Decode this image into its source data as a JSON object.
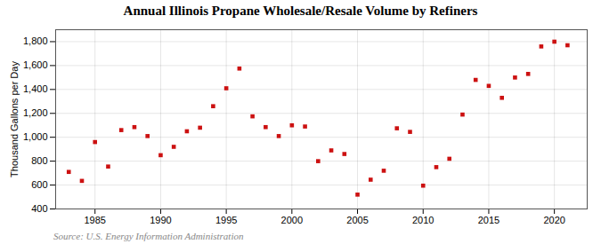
{
  "chart_data": {
    "type": "scatter",
    "title": "Annual Illinois Propane Wholesale/Resale Volume by Refiners",
    "ylabel": "Thousand Gallons per Day",
    "source": "Source: U.S. Energy Information Administration",
    "x": [
      1983,
      1984,
      1985,
      1986,
      1987,
      1988,
      1989,
      1990,
      1991,
      1992,
      1993,
      1994,
      1995,
      1996,
      1997,
      1998,
      1999,
      2000,
      2001,
      2002,
      2003,
      2004,
      2005,
      2006,
      2007,
      2008,
      2009,
      2010,
      2011,
      2012,
      2013,
      2014,
      2015,
      2016,
      2017,
      2018,
      2019,
      2020,
      2021
    ],
    "values": [
      710,
      635,
      960,
      755,
      1060,
      1085,
      1010,
      850,
      920,
      1050,
      1080,
      1260,
      1410,
      1575,
      1175,
      1085,
      1010,
      1100,
      1090,
      800,
      890,
      860,
      520,
      645,
      720,
      1075,
      1045,
      595,
      750,
      820,
      1190,
      1480,
      1430,
      1330,
      1500,
      1530,
      1760,
      1800,
      1770
    ],
    "color": "#cc1111",
    "marker": "square",
    "xlim": [
      1982,
      2022.5
    ],
    "ylim": [
      400,
      1900
    ],
    "xticks": [
      1985,
      1990,
      1995,
      2000,
      2005,
      2010,
      2015,
      2020
    ],
    "yticks": [
      400,
      600,
      800,
      {
        "value": 1000,
        "label": "1,000"
      },
      {
        "value": 1200,
        "label": "1,200"
      },
      {
        "value": 1400,
        "label": "1,400"
      },
      {
        "value": 1600,
        "label": "1,600"
      },
      {
        "value": 1800,
        "label": "1,800"
      }
    ],
    "grid": true
  }
}
